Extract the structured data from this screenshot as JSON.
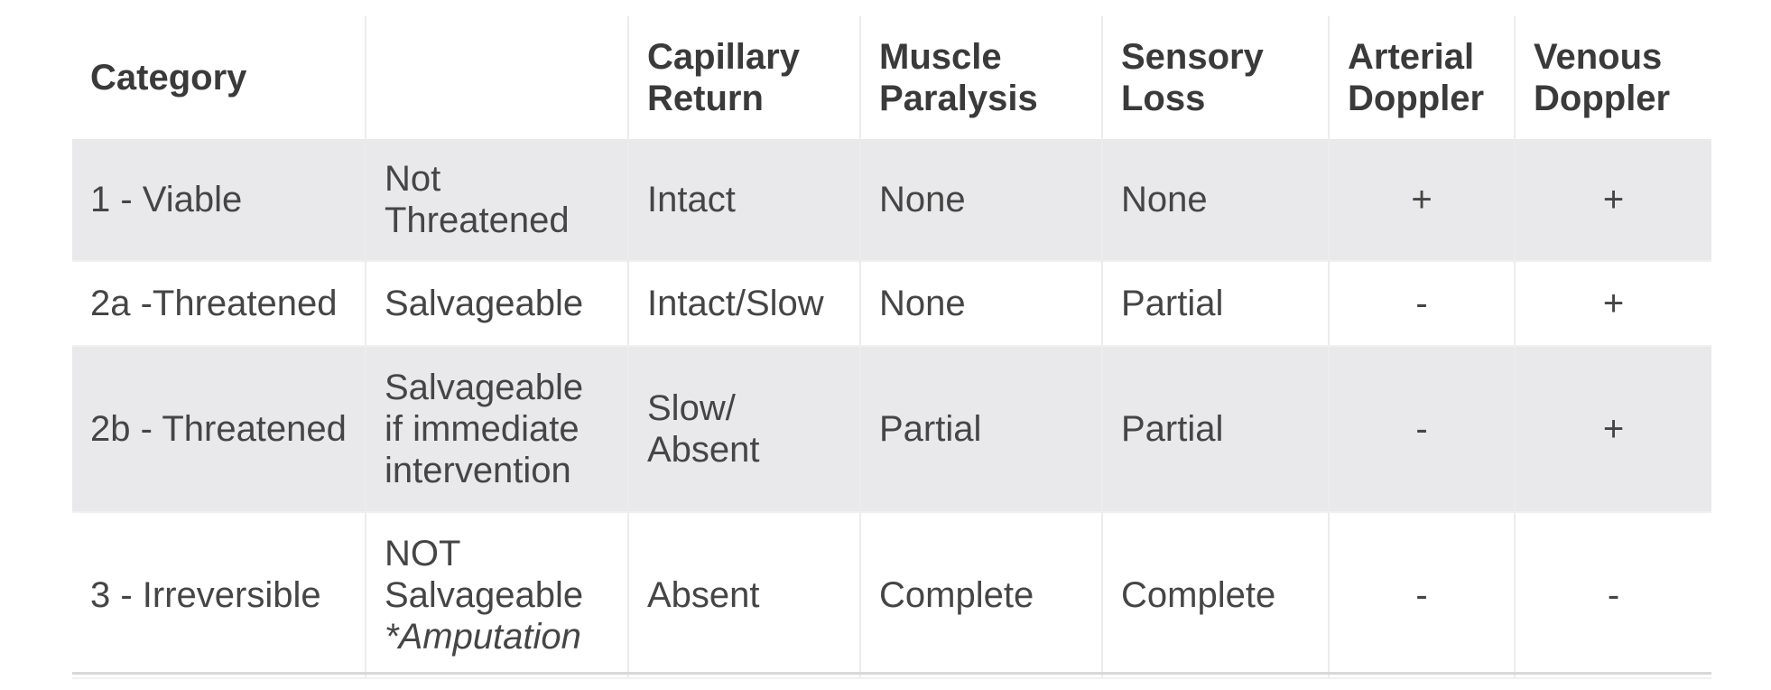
{
  "table": {
    "headers": [
      "Category",
      "",
      "Capillary Return",
      "Muscle Paralysis",
      "Sensory Loss",
      "Arterial Doppler",
      "Venous Doppler"
    ],
    "header_lines": [
      [
        "Category"
      ],
      [
        ""
      ],
      [
        "Capillary",
        "Return"
      ],
      [
        "Muscle",
        "Paralysis"
      ],
      [
        "Sensory",
        "Loss"
      ],
      [
        "Arterial",
        "Doppler"
      ],
      [
        "Venous",
        "Doppler"
      ]
    ],
    "rows": [
      {
        "category": "1 - Viable",
        "status_lines": [
          "Not",
          "Threatened"
        ],
        "capillary_lines": [
          "Intact"
        ],
        "muscle": "None",
        "sensory": "None",
        "arterial": "+",
        "venous": "+"
      },
      {
        "category": "2a -Threatened",
        "status_lines": [
          "Salvageable"
        ],
        "capillary_lines": [
          "Intact/Slow"
        ],
        "muscle": "None",
        "sensory": "Partial",
        "arterial": "-",
        "venous": "+"
      },
      {
        "category": "2b - Threatened",
        "status_lines": [
          "Salvageable",
          "if immediate",
          "intervention"
        ],
        "capillary_lines": [
          "Slow/",
          "Absent"
        ],
        "muscle": "Partial",
        "sensory": "Partial",
        "arterial": "-",
        "venous": "+"
      },
      {
        "category": "3 - Irreversible",
        "status_lines": [
          "NOT",
          "Salvageable"
        ],
        "status_note": "*Amputation",
        "capillary_lines": [
          "Absent"
        ],
        "muscle": "Complete",
        "sensory": "Complete",
        "arterial": "-",
        "venous": "-"
      }
    ]
  }
}
